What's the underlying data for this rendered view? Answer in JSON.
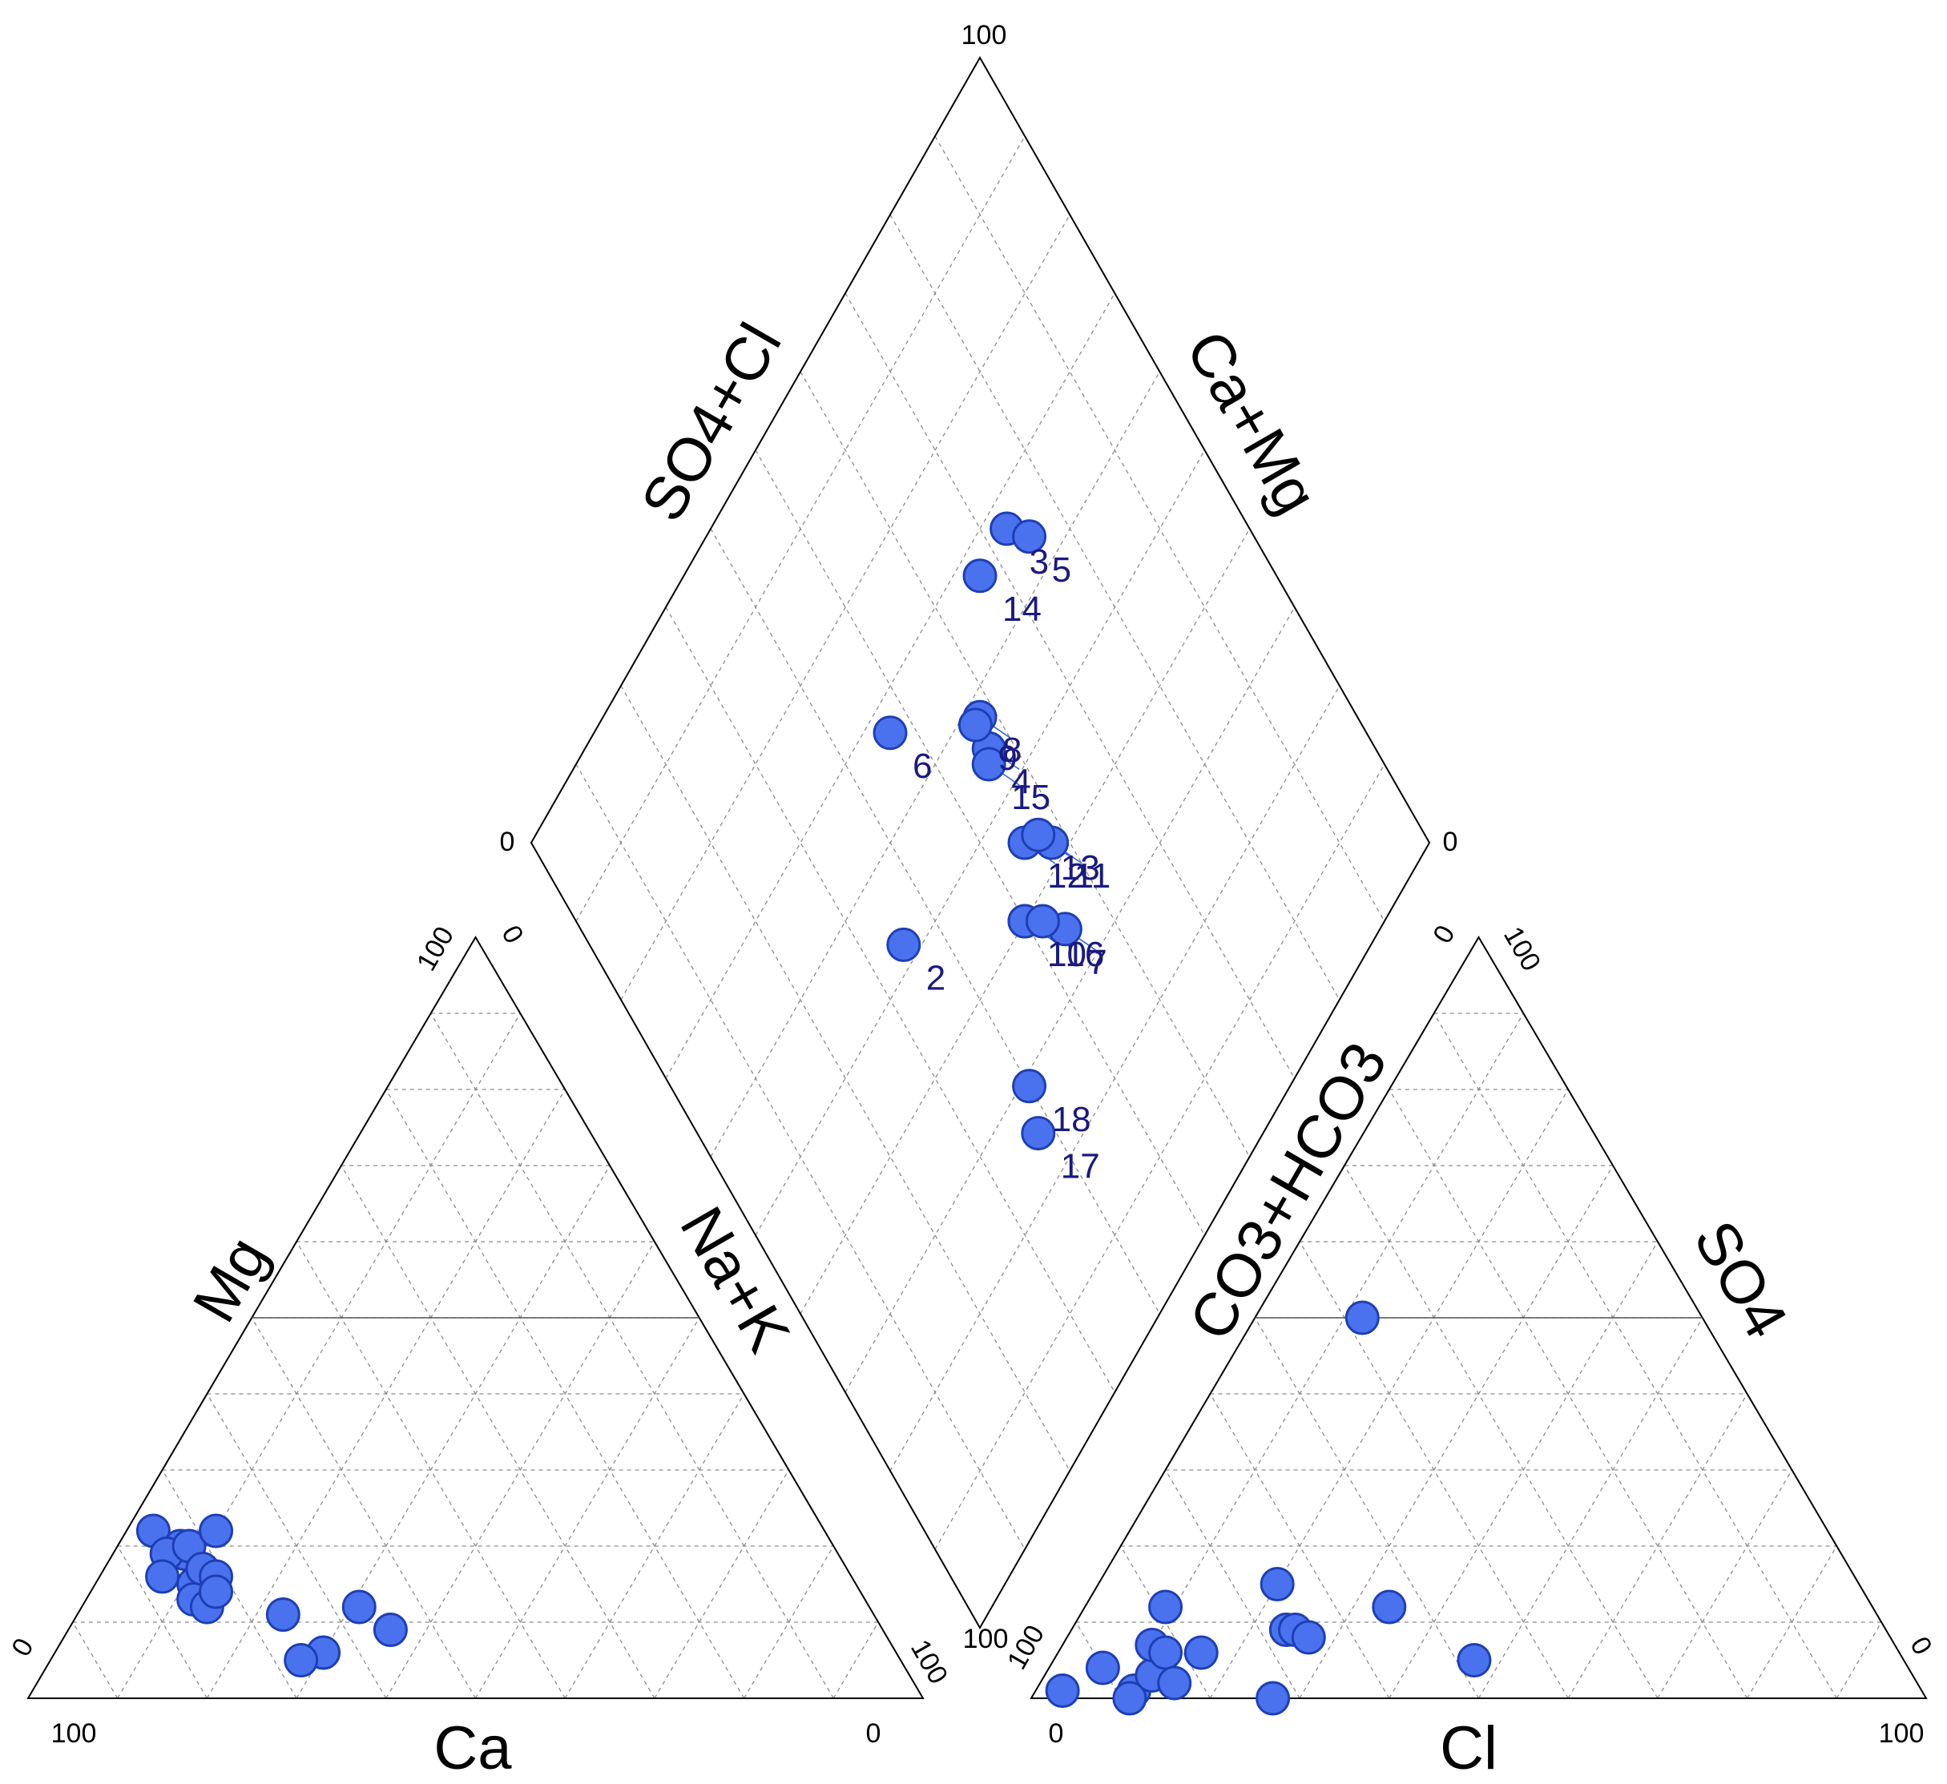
{
  "chart_data": {
    "type": "scatter",
    "diagram": "piper",
    "colors": {
      "point_fill": "#4a72ee",
      "point_stroke": "#1e3fb4",
      "label": "#1a1a80",
      "leader": "#3a66d6"
    },
    "axes": {
      "cation_triangle": {
        "bottom": "Ca",
        "left": "Mg",
        "right": "Na+K",
        "bottom_left_tick": "100",
        "bottom_right_tick": "0",
        "left_tick_bottom": "0",
        "left_tick_top": "100",
        "right_tick_top": "0",
        "right_tick_bottom": "100"
      },
      "anion_triangle": {
        "bottom": "Cl",
        "left": "CO3+HCO3",
        "right": "SO4",
        "bottom_left_tick": "0",
        "bottom_right_tick": "100",
        "left_tick_bottom": "100",
        "left_tick_top": "0",
        "right_tick_top": "100",
        "right_tick_bottom": "0"
      },
      "diamond": {
        "left": "SO4+Cl",
        "right": "Ca+Mg",
        "top_tick": "100",
        "left_tick": "0",
        "right_tick": "0",
        "bottom_tick": "100"
      }
    },
    "cation_points": [
      {
        "ca": 75,
        "mg": 22
      },
      {
        "ca": 73,
        "mg": 20
      },
      {
        "ca": 73,
        "mg": 19
      },
      {
        "ca": 75,
        "mg": 19
      },
      {
        "ca": 72,
        "mg": 20
      },
      {
        "ca": 77,
        "mg": 16
      },
      {
        "ca": 74,
        "mg": 15
      },
      {
        "ca": 72,
        "mg": 17
      },
      {
        "ca": 75,
        "mg": 13
      },
      {
        "ca": 74,
        "mg": 12
      },
      {
        "ca": 71,
        "mg": 16
      },
      {
        "ca": 72,
        "mg": 14
      },
      {
        "ca": 68,
        "mg": 22
      },
      {
        "ca": 66,
        "mg": 11
      },
      {
        "ca": 64,
        "mg": 6
      },
      {
        "ca": 67,
        "mg": 5
      },
      {
        "ca": 57,
        "mg": 12
      },
      {
        "ca": 55,
        "mg": 9
      }
    ],
    "anion_points": [
      {
        "cl": 3,
        "so4": 1
      },
      {
        "cl": 6,
        "so4": 4
      },
      {
        "cl": 11,
        "so4": 1
      },
      {
        "cl": 11,
        "so4": 0
      },
      {
        "cl": 12,
        "so4": 3
      },
      {
        "cl": 10,
        "so4": 7
      },
      {
        "cl": 12,
        "so4": 6
      },
      {
        "cl": 9,
        "so4": 12
      },
      {
        "cl": 15,
        "so4": 2
      },
      {
        "cl": 16,
        "so4": 6
      },
      {
        "cl": 20,
        "so4": 15
      },
      {
        "cl": 24,
        "so4": 9
      },
      {
        "cl": 25,
        "so4": 9
      },
      {
        "cl": 27,
        "so4": 8
      },
      {
        "cl": 34,
        "so4": 12
      },
      {
        "cl": 47,
        "so4": 5
      },
      {
        "cl": 12,
        "so4": 50
      },
      {
        "cl": 27,
        "so4": 0
      }
    ],
    "diamond_points": [
      {
        "id": "1",
        "so4_cl": 50,
        "ca_mg": 60,
        "label_dx": -20,
        "label_dy": 0,
        "leader": true
      },
      {
        "id": "2",
        "so4_cl": 35,
        "ca_mg": 48,
        "label_dx": 0,
        "label_dy": 0,
        "leader": false
      },
      {
        "id": "3",
        "so4_cl": 73,
        "ca_mg": 33,
        "label_dx": 0,
        "label_dy": 0,
        "leader": false
      },
      {
        "id": "4",
        "so4_cl": 57,
        "ca_mg": 45,
        "label_dx": 0,
        "label_dy": 0,
        "leader": true
      },
      {
        "id": "5",
        "so4_cl": 75,
        "ca_mg": 36,
        "label_dx": 0,
        "label_dy": 0,
        "leader": false
      },
      {
        "id": "6",
        "so4_cl": 47,
        "ca_mg": 33,
        "label_dx": 0,
        "label_dy": 0,
        "leader": false
      },
      {
        "id": "7",
        "so4_cl": 54,
        "ca_mg": 65,
        "label_dx": 0,
        "label_dy": 0,
        "leader": true
      },
      {
        "id": "8",
        "so4_cl": 58,
        "ca_mg": 42,
        "label_dx": 0,
        "label_dy": 0,
        "leader": true
      },
      {
        "id": "9",
        "so4_cl": 57,
        "ca_mg": 42,
        "label_dx": 0,
        "label_dy": 0,
        "leader": true
      },
      {
        "id": "10",
        "so4_cl": 50,
        "ca_mg": 60,
        "label_dx": 0,
        "label_dy": 0,
        "leader": true
      },
      {
        "id": "11",
        "so4_cl": 58,
        "ca_mg": 58,
        "label_dx": 0,
        "label_dy": 0,
        "leader": true
      },
      {
        "id": "12",
        "so4_cl": 55,
        "ca_mg": 55,
        "label_dx": 0,
        "label_dy": 0,
        "leader": true
      },
      {
        "id": "13",
        "so4_cl": 57,
        "ca_mg": 56,
        "label_dx": 0,
        "label_dy": 0,
        "leader": true
      },
      {
        "id": "14",
        "so4_cl": 67,
        "ca_mg": 33,
        "label_dx": 0,
        "label_dy": 0,
        "leader": false
      },
      {
        "id": "15",
        "so4_cl": 56,
        "ca_mg": 46,
        "label_dx": 0,
        "label_dy": 0,
        "leader": true
      },
      {
        "id": "16",
        "so4_cl": 52,
        "ca_mg": 62,
        "label_dx": 0,
        "label_dy": 0,
        "leader": false
      },
      {
        "id": "17",
        "so4_cl": 38,
        "ca_mg": 75,
        "label_dx": 0,
        "label_dy": 0,
        "leader": false
      },
      {
        "id": "18",
        "so4_cl": 40,
        "ca_mg": 71,
        "label_dx": 0,
        "label_dy": 0,
        "leader": false
      }
    ]
  }
}
